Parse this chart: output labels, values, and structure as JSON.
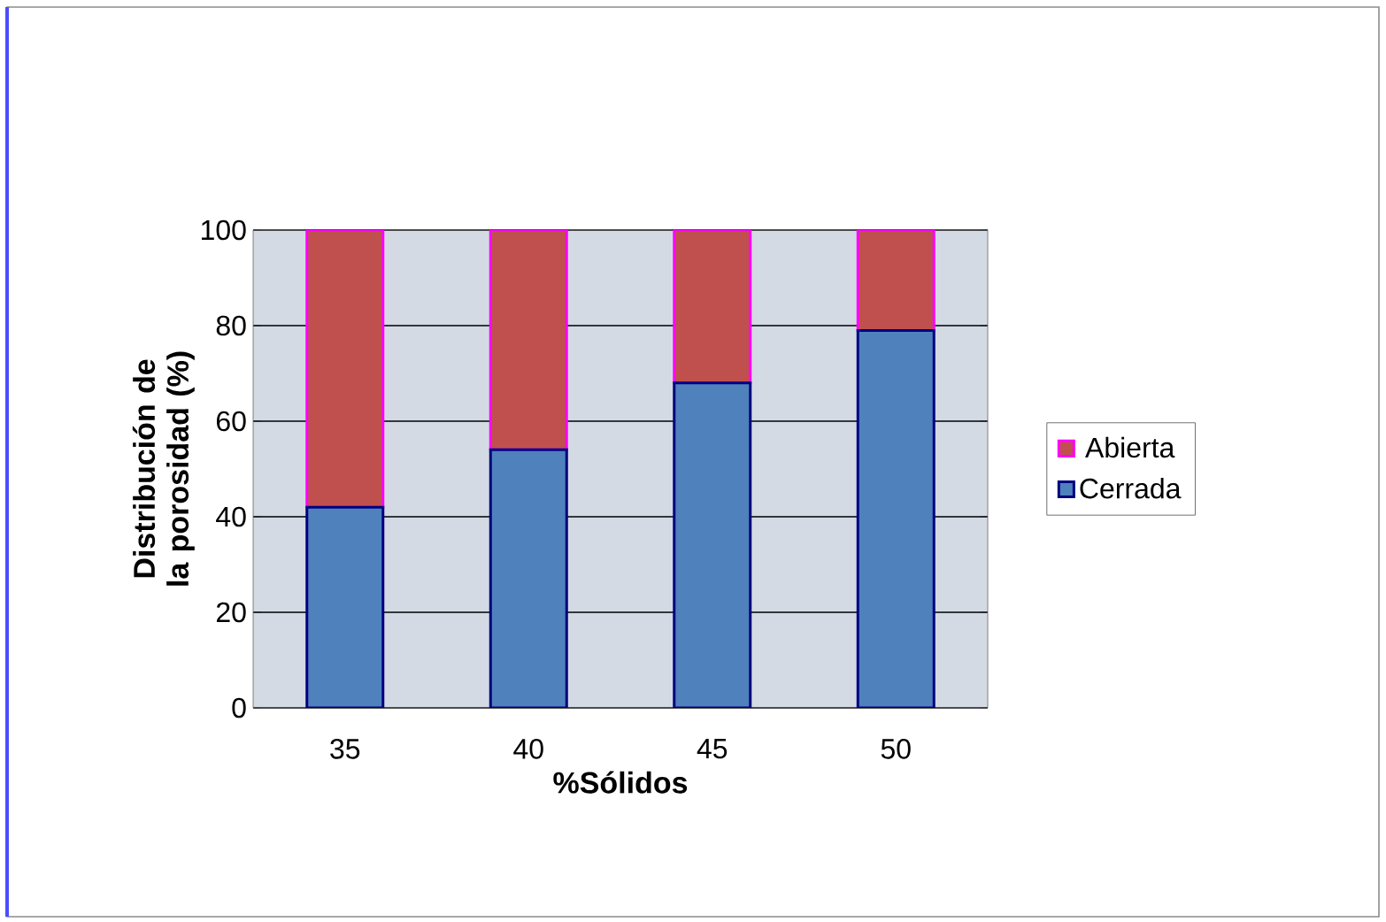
{
  "chart_data": {
    "type": "bar",
    "stacked": true,
    "xlabel": "%Sólidos",
    "ylabel": "Distribución de la porosidad (%)",
    "categories": [
      "35",
      "40",
      "45",
      "50"
    ],
    "series": [
      {
        "name": "Cerrada",
        "color": "#4f81bd",
        "values": [
          42,
          54,
          68,
          79
        ]
      },
      {
        "name": "Abierta",
        "color": "#c0504d",
        "values": [
          58,
          46,
          32,
          21
        ]
      }
    ],
    "ylim": [
      0,
      100
    ],
    "yticks": [
      0,
      20,
      40,
      60,
      80,
      100
    ],
    "grid": "y",
    "legend": "right"
  }
}
